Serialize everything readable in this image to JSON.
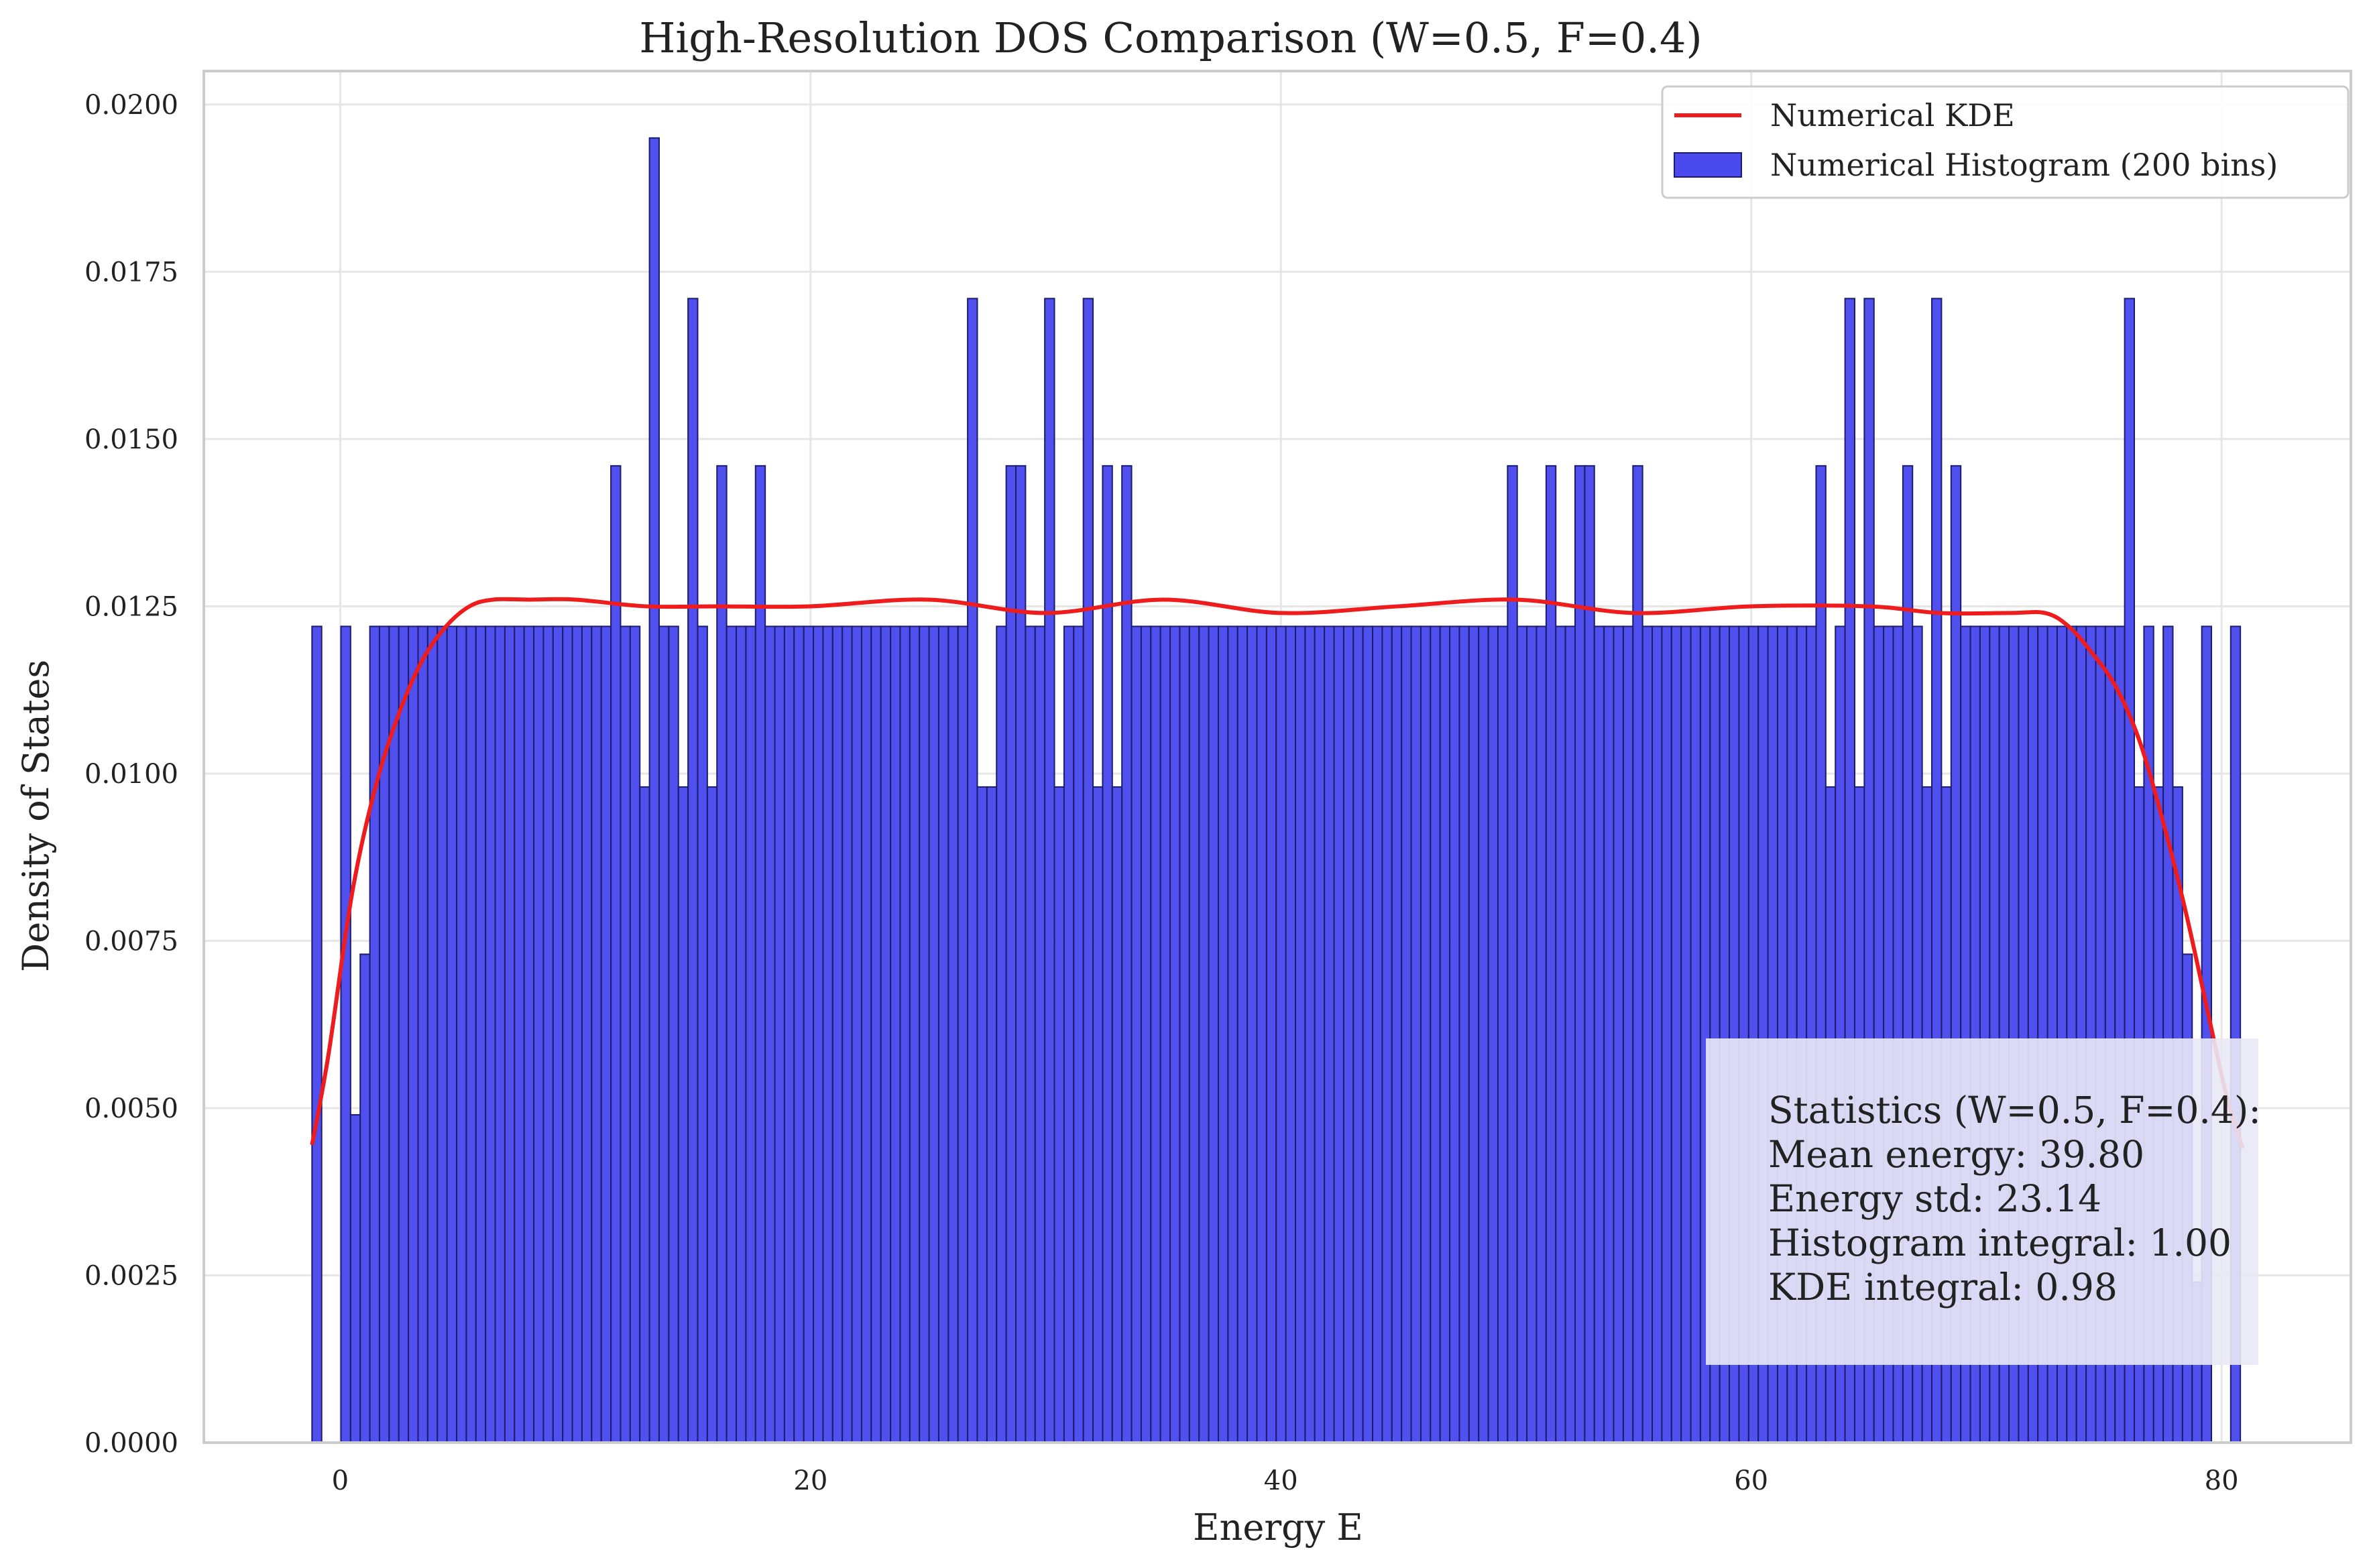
{
  "chart_data": {
    "type": "bar",
    "title": "High-Resolution DOS Comparison (W=0.5, F=0.4)",
    "xlabel": "Energy E",
    "ylabel": "Density of States",
    "xlim": [
      -5.8,
      85.5
    ],
    "ylim": [
      0,
      0.0205
    ],
    "xticks": [
      0,
      20,
      40,
      60,
      80
    ],
    "yticks": [
      0,
      0.0025,
      0.005,
      0.0075,
      0.01,
      0.0125,
      0.015,
      0.0175,
      0.02
    ],
    "xtick_labels": [
      "0",
      "20",
      "40",
      "60",
      "80"
    ],
    "ytick_labels": [
      "0.0000",
      "0.0025",
      "0.0050",
      "0.0075",
      "0.0100",
      "0.0125",
      "0.0150",
      "0.0175",
      "0.0200"
    ],
    "grid": true,
    "legend_placement": "top-right",
    "colors": {
      "histogram": "#4a4aee",
      "histogram_edge": "#1c1c6e",
      "kde": "#ee1c1c",
      "grid": "#e6e6e6",
      "axis": "#cccccc"
    },
    "histogram": {
      "name": "Numerical Histogram (200 bins)",
      "bin_start": -1.2,
      "bin_width": 0.41,
      "values": [
        0.0122,
        0,
        0,
        0.0122,
        0.0049,
        0.0073,
        0.0122,
        0.0122,
        0.0122,
        0.0122,
        0.0122,
        0.0122,
        0.0122,
        0.0122,
        0.0122,
        0.0122,
        0.0122,
        0.0122,
        0.0122,
        0.0122,
        0.0122,
        0.0122,
        0.0122,
        0.0122,
        0.0122,
        0.0122,
        0.0122,
        0.0122,
        0.0122,
        0.0122,
        0.0122,
        0.0146,
        0.0122,
        0.0122,
        0.0098,
        0.0195,
        0.0122,
        0.0122,
        0.0098,
        0.0171,
        0.0122,
        0.0098,
        0.0146,
        0.0122,
        0.0122,
        0.0122,
        0.0146,
        0.0122,
        0.0122,
        0.0122,
        0.0122,
        0.0122,
        0.0122,
        0.0122,
        0.0122,
        0.0122,
        0.0122,
        0.0122,
        0.0122,
        0.0122,
        0.0122,
        0.0122,
        0.0122,
        0.0122,
        0.0122,
        0.0122,
        0.0122,
        0.0122,
        0.0171,
        0.0098,
        0.0098,
        0.0122,
        0.0146,
        0.0146,
        0.0122,
        0.0122,
        0.0171,
        0.0098,
        0.0122,
        0.0122,
        0.0171,
        0.0098,
        0.0146,
        0.0098,
        0.0146,
        0.0122,
        0.0122,
        0.0122,
        0.0122,
        0.0122,
        0.0122,
        0.0122,
        0.0122,
        0.0122,
        0.0122,
        0.0122,
        0.0122,
        0.0122,
        0.0122,
        0.0122,
        0.0122,
        0.0122,
        0.0122,
        0.0122,
        0.0122,
        0.0122,
        0.0122,
        0.0122,
        0.0122,
        0.0122,
        0.0122,
        0.0122,
        0.0122,
        0.0122,
        0.0122,
        0.0122,
        0.0122,
        0.0122,
        0.0122,
        0.0122,
        0.0122,
        0.0122,
        0.0122,
        0.0122,
        0.0146,
        0.0122,
        0.0122,
        0.0122,
        0.0146,
        0.0122,
        0.0122,
        0.0146,
        0.0146,
        0.0122,
        0.0122,
        0.0122,
        0.0122,
        0.0146,
        0.0122,
        0.0122,
        0.0122,
        0.0122,
        0.0122,
        0.0122,
        0.0122,
        0.0122,
        0.0122,
        0.0122,
        0.0122,
        0.0122,
        0.0122,
        0.0122,
        0.0122,
        0.0122,
        0.0122,
        0.0122,
        0.0146,
        0.0098,
        0.0122,
        0.0171,
        0.0098,
        0.0171,
        0.0122,
        0.0122,
        0.0122,
        0.0146,
        0.0122,
        0.0098,
        0.0171,
        0.0098,
        0.0146,
        0.0122,
        0.0122,
        0.0122,
        0.0122,
        0.0122,
        0.0122,
        0.0122,
        0.0122,
        0.0122,
        0.0122,
        0.0122,
        0.0122,
        0.0122,
        0.0122,
        0.0122,
        0.0122,
        0.0122,
        0.0171,
        0.0098,
        0.0122,
        0.0098,
        0.0122,
        0.0098,
        0.0073,
        0.0024,
        0.0122,
        0,
        0,
        0.0122
      ]
    },
    "kde": {
      "name": "Numerical KDE",
      "x": [
        -1.2,
        -0.5,
        0.5,
        1.5,
        2.5,
        3.5,
        4.5,
        5.5,
        6.5,
        8,
        10,
        13,
        16,
        20,
        25,
        30,
        35,
        40,
        45,
        50,
        55,
        60,
        65,
        68,
        71,
        72.5,
        73.5,
        74.5,
        75.5,
        76.5,
        77.5,
        78.5,
        79.5,
        80.2,
        80.9
      ],
      "y": [
        0.00445,
        0.0058,
        0.0082,
        0.0098,
        0.0109,
        0.0117,
        0.0122,
        0.0125,
        0.0126,
        0.0126,
        0.0126,
        0.0125,
        0.0125,
        0.0125,
        0.0126,
        0.0124,
        0.0126,
        0.0124,
        0.0125,
        0.0126,
        0.0124,
        0.0125,
        0.0125,
        0.0124,
        0.0124,
        0.0124,
        0.0122,
        0.0118,
        0.0113,
        0.0105,
        0.0093,
        0.0079,
        0.0063,
        0.0052,
        0.0044
      ]
    },
    "stats_box": {
      "line1": "Statistics (W=0.5, F=0.4):",
      "line2": "Mean energy: 39.80",
      "line3": "Energy std: 23.14",
      "line4": "Histogram integral: 1.00",
      "line5": "KDE integral: 0.98"
    }
  }
}
